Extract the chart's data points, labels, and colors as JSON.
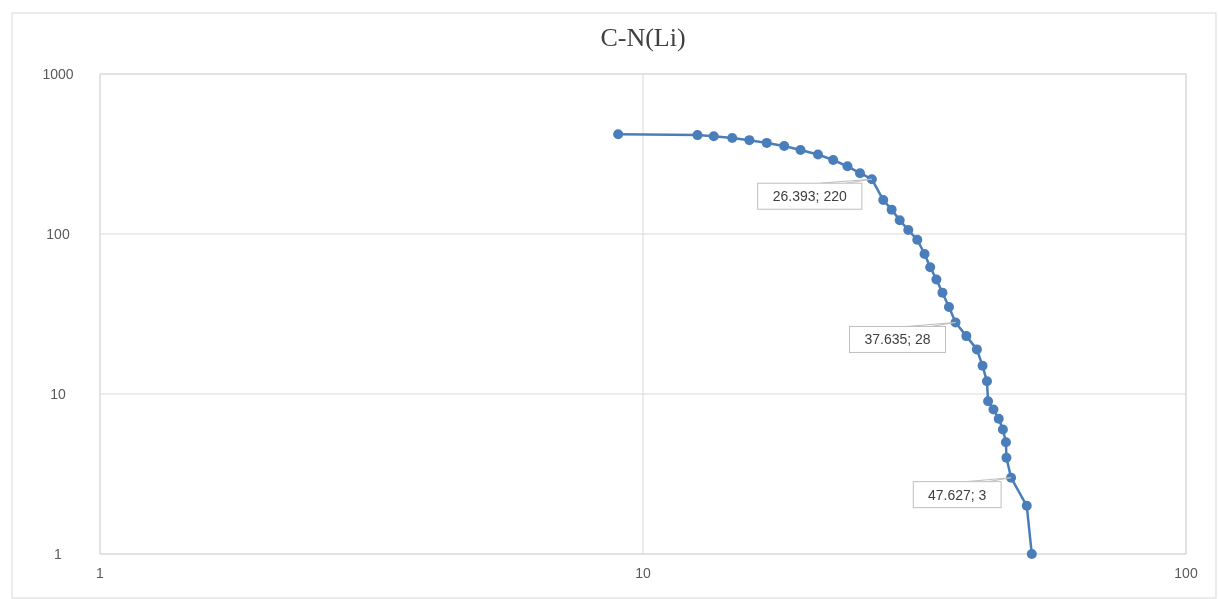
{
  "chart_data": {
    "type": "line",
    "title": "C-N(Li)",
    "log": "xy",
    "grid": true,
    "marker": "circle",
    "line_style": "solid",
    "xlim": [
      1,
      100
    ],
    "xticks": [
      1,
      10,
      100
    ],
    "ylim": [
      1,
      1000
    ],
    "yticks": [
      1,
      10,
      100,
      1000
    ],
    "series": [
      {
        "color": "#4a7ebb",
        "x": [
          9,
          12.6,
          13.5,
          14.6,
          15.7,
          16.9,
          18.2,
          19.5,
          21,
          22.4,
          23.8,
          25.1,
          26.393,
          27.7,
          28.7,
          29.7,
          30.8,
          32,
          33,
          33.8,
          34.7,
          35.6,
          36.6,
          37.635,
          39.4,
          41.2,
          42.2,
          43,
          43.2,
          44.2,
          45.2,
          46,
          46.6,
          46.7,
          47.627,
          50.9,
          52
        ],
        "values": [
          420,
          415,
          408,
          398,
          386,
          371,
          355,
          335,
          314,
          290,
          265,
          240,
          220,
          163,
          142,
          122,
          106,
          92,
          75,
          62,
          52,
          43,
          35,
          28,
          23,
          19,
          15,
          12,
          9,
          8,
          7,
          6,
          5,
          4,
          3,
          2,
          1
        ]
      }
    ],
    "annotations": [
      {
        "text": "26.393; 220",
        "x": 26.393,
        "y": 220
      },
      {
        "text": "37.635; 28",
        "x": 37.635,
        "y": 28
      },
      {
        "text": "47.627; 3",
        "x": 47.627,
        "y": 3
      }
    ]
  }
}
